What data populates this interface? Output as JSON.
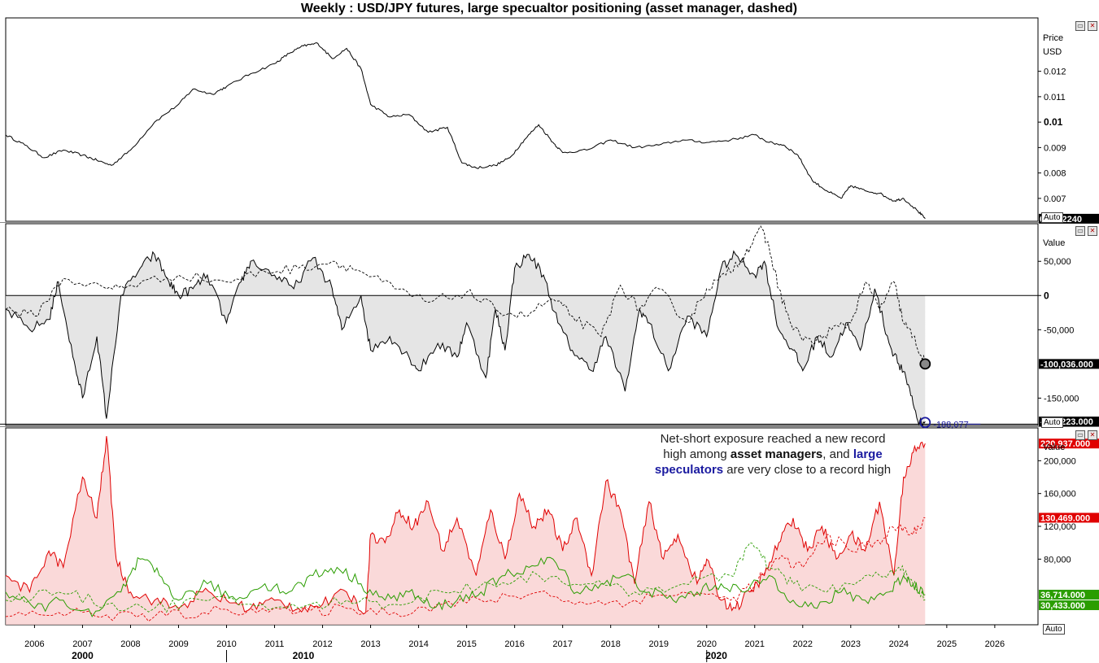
{
  "chart_data": [
    {
      "type": "line",
      "title": "Weekly : USD/JPY futures, large specualtor positioning (asset manager, dashed)",
      "ylabel": "Price",
      "unit": "USD",
      "ylim": [
        0.0061,
        0.0141
      ],
      "y_ticks": [
        "0.012",
        "0.011",
        "0.01",
        "0.009",
        "0.008",
        "0.007"
      ],
      "last_value_label": "0.0062240",
      "series": [
        {
          "color": "#000000",
          "x": [
            2005.4,
            2005.8,
            2006.2,
            2006.6,
            2007.0,
            2007.3,
            2007.6,
            2008.0,
            2008.5,
            2009.0,
            2009.3,
            2009.7,
            2010.0,
            2010.5,
            2011.0,
            2011.3,
            2011.6,
            2011.9,
            2012.2,
            2012.5,
            2012.8,
            2013.0,
            2013.4,
            2013.8,
            2014.2,
            2014.6,
            2014.9,
            2015.2,
            2015.6,
            2015.9,
            2016.2,
            2016.5,
            2016.8,
            2017.0,
            2017.5,
            2018.0,
            2018.5,
            2019.0,
            2019.5,
            2020.0,
            2020.5,
            2021.0,
            2021.3,
            2021.6,
            2021.9,
            2022.2,
            2022.5,
            2022.8,
            2023.0,
            2023.3,
            2023.6,
            2023.9,
            2024.1,
            2024.4,
            2024.55
          ],
          "values": [
            0.0095,
            0.0091,
            0.0086,
            0.0089,
            0.0087,
            0.0085,
            0.0083,
            0.0089,
            0.01,
            0.0107,
            0.0113,
            0.0111,
            0.0114,
            0.0119,
            0.0123,
            0.0127,
            0.013,
            0.0131,
            0.0125,
            0.0129,
            0.0121,
            0.0107,
            0.0102,
            0.0103,
            0.0096,
            0.0098,
            0.0084,
            0.0082,
            0.0083,
            0.0086,
            0.0093,
            0.0099,
            0.0092,
            0.0088,
            0.0089,
            0.0093,
            0.009,
            0.0091,
            0.0093,
            0.0092,
            0.0093,
            0.0095,
            0.0092,
            0.0091,
            0.0087,
            0.0077,
            0.0073,
            0.007,
            0.0075,
            0.0073,
            0.0072,
            0.0069,
            0.007,
            0.0065,
            0.0062
          ]
        }
      ]
    },
    {
      "type": "area",
      "ylabel": "Value",
      "ylim": [
        -190000,
        105000
      ],
      "y_ticks": [
        "50,000",
        "0",
        "-50,000",
        "-150,000"
      ],
      "value_labels": [
        "-100,036.000",
        "-184,223.000"
      ],
      "record_label": "-188,077",
      "series": [
        {
          "style": "solid",
          "fill": "#dcdcdc",
          "x": [
            2005.4,
            2005.9,
            2006.3,
            2006.5,
            2006.8,
            2007.0,
            2007.3,
            2007.5,
            2007.8,
            2008.2,
            2008.5,
            2008.8,
            2009.0,
            2009.3,
            2009.6,
            2010.0,
            2010.3,
            2010.5,
            2011.0,
            2011.4,
            2011.8,
            2012.2,
            2012.4,
            2012.8,
            2013.0,
            2013.4,
            2013.8,
            2014.0,
            2014.4,
            2014.8,
            2015.0,
            2015.4,
            2015.6,
            2015.8,
            2016.0,
            2016.3,
            2016.6,
            2016.9,
            2017.2,
            2017.6,
            2017.9,
            2018.3,
            2018.6,
            2018.8,
            2019.2,
            2019.6,
            2020.0,
            2020.3,
            2020.6,
            2021.0,
            2021.2,
            2021.5,
            2021.8,
            2022.0,
            2022.3,
            2022.6,
            2022.9,
            2023.2,
            2023.5,
            2023.8,
            2024.0,
            2024.2,
            2024.4,
            2024.55
          ],
          "values": [
            -20000,
            -50000,
            -35000,
            20000,
            -90000,
            -150000,
            -60000,
            -180000,
            0,
            40000,
            60000,
            20000,
            0,
            10000,
            30000,
            -40000,
            20000,
            50000,
            30000,
            10000,
            55000,
            10000,
            -50000,
            0,
            -80000,
            -60000,
            -90000,
            -110000,
            -70000,
            -90000,
            -40000,
            -120000,
            -20000,
            -80000,
            40000,
            60000,
            30000,
            -40000,
            -80000,
            -110000,
            -60000,
            -140000,
            -20000,
            -40000,
            -110000,
            -30000,
            -60000,
            40000,
            60000,
            30000,
            50000,
            -50000,
            -80000,
            -110000,
            -60000,
            -90000,
            -40000,
            -80000,
            10000,
            -70000,
            -100000,
            -130000,
            -184000,
            -184223
          ]
        },
        {
          "style": "dashed",
          "x": [
            2005.4,
            2006.0,
            2006.6,
            2007.5,
            2008.0,
            2009.0,
            2010.0,
            2010.8,
            2011.5,
            2012.2,
            2012.8,
            2013.5,
            2014.2,
            2015.0,
            2015.6,
            2016.2,
            2016.8,
            2017.2,
            2017.8,
            2018.2,
            2018.6,
            2019.0,
            2019.6,
            2020.0,
            2020.4,
            2020.8,
            2021.1,
            2021.3,
            2021.5,
            2021.8,
            2022.2,
            2022.6,
            2023.0,
            2023.3,
            2023.6,
            2023.9,
            2024.1,
            2024.3,
            2024.55
          ],
          "values": [
            -20000,
            -30000,
            25000,
            10000,
            15000,
            30000,
            20000,
            35000,
            40000,
            50000,
            35000,
            10000,
            -10000,
            5000,
            -20000,
            -30000,
            -5000,
            -30000,
            -60000,
            15000,
            -20000,
            10000,
            -40000,
            10000,
            30000,
            60000,
            100000,
            70000,
            10000,
            -50000,
            -70000,
            -50000,
            -40000,
            20000,
            -20000,
            20000,
            -40000,
            -60000,
            -100036
          ]
        }
      ],
      "reference_line": 0
    },
    {
      "type": "area",
      "ylabel": "Value",
      "ylim": [
        0,
        240000
      ],
      "y_ticks": [
        "200,000",
        "160,000",
        "120,000",
        "80,000"
      ],
      "value_labels": [
        "220,937.000",
        "130,469.000",
        "36,714.000",
        "30,433.000"
      ],
      "annotation": {
        "line1": "Net-short exposure reached a new record",
        "line2": "high among",
        "bold1": "asset managers",
        "line3": ", and",
        "bold2": "large",
        "bold3": "speculators",
        "line4": "are very close to a record high"
      },
      "series": [
        {
          "color": "#e00000",
          "style": "solid",
          "fill": "#f8cccc",
          "x": [
            2005.4,
            2005.9,
            2006.3,
            2006.6,
            2007.0,
            2007.3,
            2007.5,
            2007.7,
            2008.0,
            2008.5,
            2009.0,
            2009.5,
            2010.0,
            2010.5,
            2011.0,
            2011.5,
            2012.0,
            2012.5,
            2012.9,
            2013.0,
            2013.3,
            2013.6,
            2013.9,
            2014.2,
            2014.5,
            2014.8,
            2015.2,
            2015.5,
            2015.8,
            2016.1,
            2016.4,
            2016.7,
            2017.0,
            2017.3,
            2017.6,
            2017.9,
            2018.2,
            2018.5,
            2018.8,
            2019.1,
            2019.4,
            2019.8,
            2020.0,
            2020.3,
            2020.6,
            2020.9,
            2021.2,
            2021.5,
            2021.8,
            2022.1,
            2022.4,
            2022.7,
            2023.0,
            2023.3,
            2023.6,
            2023.9,
            2024.1,
            2024.3,
            2024.55
          ],
          "values": [
            60000,
            40000,
            90000,
            70000,
            180000,
            130000,
            230000,
            80000,
            40000,
            30000,
            20000,
            40000,
            30000,
            20000,
            30000,
            20000,
            25000,
            40000,
            15000,
            110000,
            100000,
            140000,
            120000,
            150000,
            90000,
            130000,
            60000,
            140000,
            80000,
            160000,
            120000,
            140000,
            90000,
            130000,
            60000,
            175000,
            140000,
            50000,
            150000,
            80000,
            110000,
            50000,
            80000,
            30000,
            20000,
            40000,
            60000,
            100000,
            130000,
            90000,
            120000,
            80000,
            110000,
            90000,
            150000,
            60000,
            180000,
            210000,
            220937
          ]
        },
        {
          "color": "#e00000",
          "style": "dashed",
          "x": [
            2005.4,
            2006.5,
            2007.5,
            2008.5,
            2009.5,
            2010.5,
            2011.5,
            2012.5,
            2013.5,
            2014.5,
            2015.5,
            2016.5,
            2017.5,
            2018.5,
            2019.5,
            2020.5,
            2021.0,
            2021.5,
            2022.0,
            2022.5,
            2023.0,
            2023.5,
            2024.0,
            2024.3,
            2024.55
          ],
          "values": [
            10000,
            15000,
            12000,
            10000,
            15000,
            20000,
            15000,
            20000,
            15000,
            25000,
            30000,
            40000,
            25000,
            30000,
            40000,
            30000,
            50000,
            80000,
            70000,
            110000,
            90000,
            100000,
            120000,
            110000,
            130469
          ]
        },
        {
          "color": "#2a9d00",
          "style": "solid",
          "x": [
            2005.4,
            2006.0,
            2006.6,
            2007.2,
            2007.8,
            2008.2,
            2008.6,
            2009.0,
            2009.6,
            2010.2,
            2010.8,
            2011.3,
            2011.8,
            2012.3,
            2012.8,
            2013.3,
            2013.8,
            2014.3,
            2014.8,
            2015.3,
            2015.8,
            2016.3,
            2016.8,
            2017.3,
            2017.8,
            2018.3,
            2018.8,
            2019.3,
            2019.8,
            2020.3,
            2020.8,
            2021.3,
            2021.8,
            2022.3,
            2022.8,
            2023.3,
            2023.8,
            2024.1,
            2024.3,
            2024.55
          ],
          "values": [
            40000,
            20000,
            30000,
            10000,
            40000,
            80000,
            60000,
            30000,
            50000,
            30000,
            50000,
            40000,
            60000,
            70000,
            50000,
            30000,
            40000,
            20000,
            30000,
            40000,
            60000,
            70000,
            80000,
            40000,
            50000,
            60000,
            40000,
            30000,
            40000,
            50000,
            40000,
            60000,
            30000,
            20000,
            40000,
            30000,
            40000,
            60000,
            50000,
            36714
          ]
        },
        {
          "color": "#2a9d00",
          "style": "dashed",
          "x": [
            2005.4,
            2006.5,
            2007.5,
            2008.5,
            2009.5,
            2010.5,
            2011.5,
            2012.5,
            2013.5,
            2014.5,
            2015.5,
            2016.5,
            2017.5,
            2018.5,
            2019.5,
            2020.5,
            2020.9,
            2021.3,
            2021.8,
            2022.5,
            2023.0,
            2023.6,
            2024.0,
            2024.3,
            2024.55
          ],
          "values": [
            30000,
            40000,
            25000,
            20000,
            30000,
            25000,
            20000,
            30000,
            25000,
            40000,
            50000,
            60000,
            50000,
            40000,
            50000,
            60000,
            100000,
            70000,
            50000,
            40000,
            50000,
            60000,
            70000,
            50000,
            30433
          ]
        }
      ]
    }
  ],
  "x_axis": {
    "years": [
      "2006",
      "2007",
      "2008",
      "2009",
      "2010",
      "2011",
      "2012",
      "2013",
      "2014",
      "2015",
      "2016",
      "2017",
      "2018",
      "2019",
      "2020",
      "2021",
      "2022",
      "2023",
      "2024",
      "2025",
      "2026"
    ],
    "decades": [
      "2000",
      "2010",
      "2020"
    ],
    "auto_label": "Auto"
  },
  "pane_buttons": {
    "restore": "▭",
    "close": "✕"
  }
}
